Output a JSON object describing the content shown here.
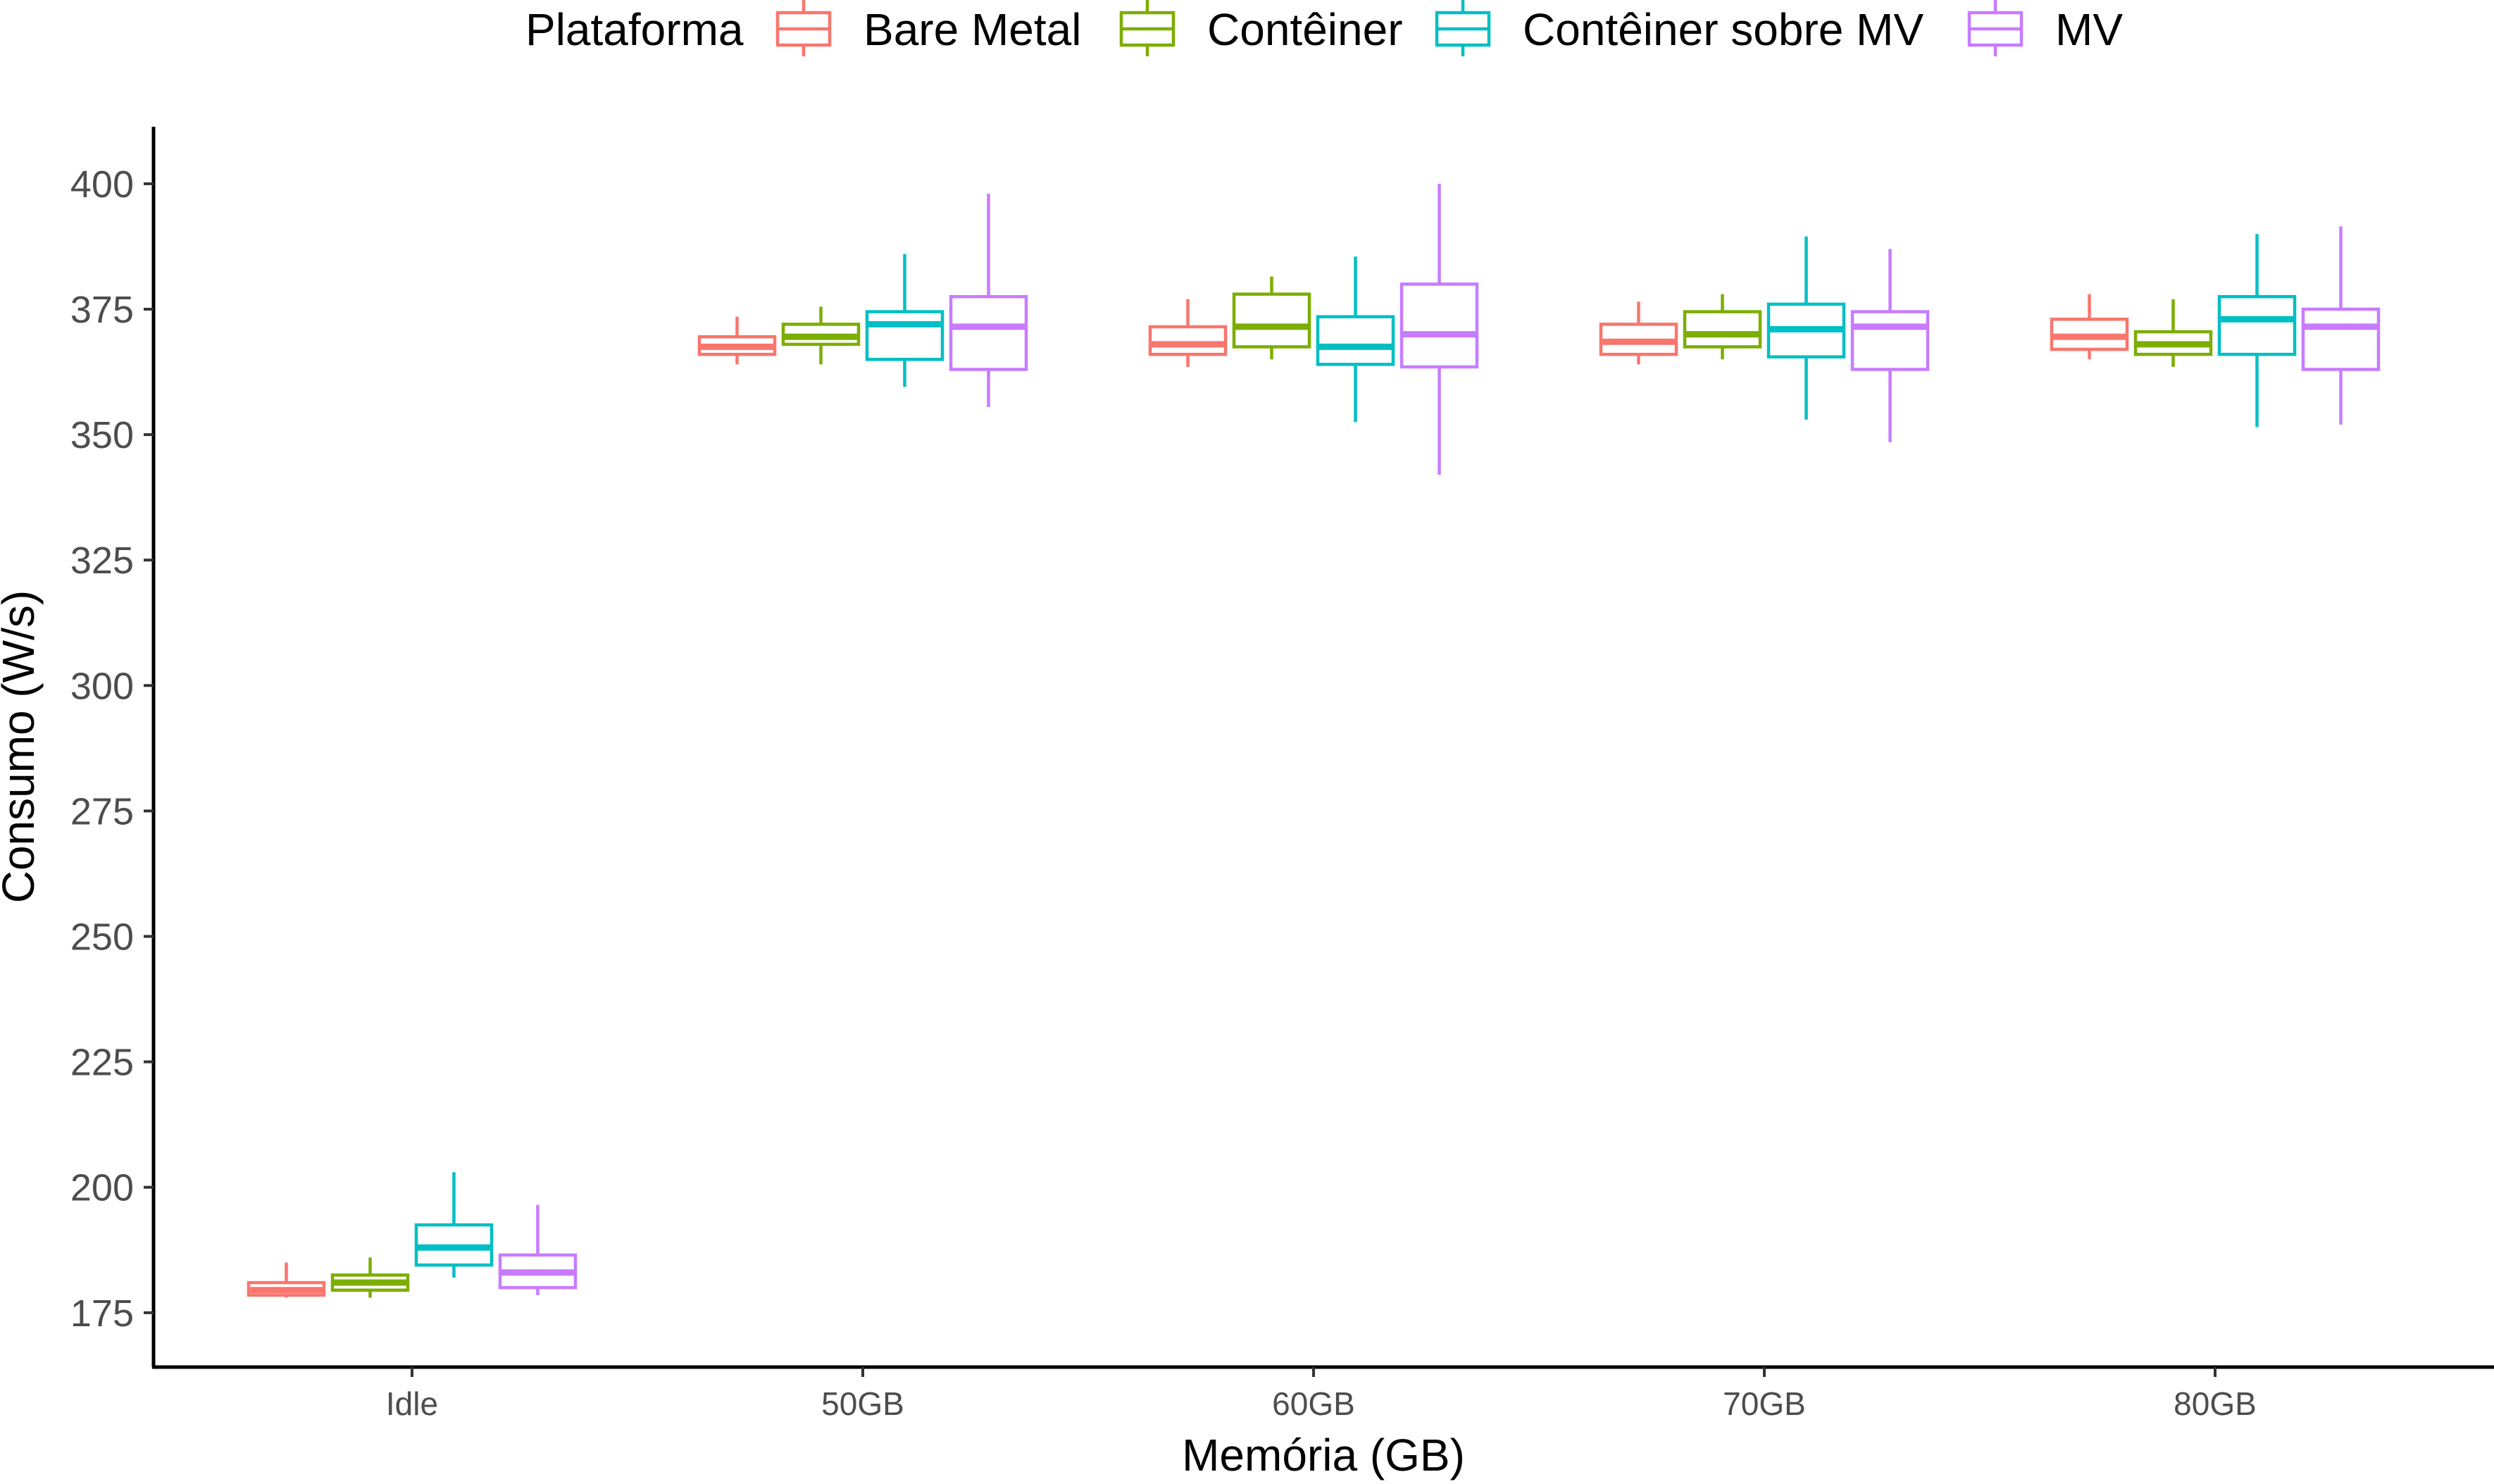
{
  "chart_data": {
    "type": "boxplot",
    "xlabel": "Memória (GB)",
    "ylabel": "Consumo (W/s)",
    "ylim": [
      160,
      410
    ],
    "yticks": [
      175,
      200,
      225,
      250,
      275,
      300,
      325,
      350,
      375,
      400
    ],
    "grid": false,
    "legend_title": "Plataforma",
    "legend_position": "top",
    "categories": [
      "Idle",
      "50GB",
      "60GB",
      "70GB",
      "80GB"
    ],
    "series": [
      {
        "name": "Bare Metal",
        "color": "#F8766D",
        "boxes": [
          {
            "min": 178,
            "q1": 178.5,
            "median": 179.5,
            "q3": 181,
            "max": 185
          },
          {
            "min": 364,
            "q1": 366,
            "median": 367.5,
            "q3": 369.5,
            "max": 373.5
          },
          {
            "min": 363.5,
            "q1": 366,
            "median": 368,
            "q3": 371.5,
            "max": 377
          },
          {
            "min": 364,
            "q1": 366,
            "median": 368.5,
            "q3": 372,
            "max": 376.5
          },
          {
            "min": 365,
            "q1": 367,
            "median": 369.5,
            "q3": 373,
            "max": 378
          }
        ]
      },
      {
        "name": "Contêiner",
        "color": "#7CAE00",
        "boxes": [
          {
            "min": 178,
            "q1": 179.5,
            "median": 181,
            "q3": 182.5,
            "max": 186
          },
          {
            "min": 364,
            "q1": 368,
            "median": 369.5,
            "q3": 372,
            "max": 375.5
          },
          {
            "min": 365,
            "q1": 367.5,
            "median": 371.5,
            "q3": 378,
            "max": 381.5
          },
          {
            "min": 365,
            "q1": 367.5,
            "median": 370,
            "q3": 374.5,
            "max": 378
          },
          {
            "min": 363.5,
            "q1": 366,
            "median": 368,
            "q3": 370.5,
            "max": 377
          }
        ]
      },
      {
        "name": "Contêiner sobre MV",
        "color": "#00BFC4",
        "boxes": [
          {
            "min": 182,
            "q1": 184.5,
            "median": 188,
            "q3": 192.5,
            "max": 203
          },
          {
            "min": 359.5,
            "q1": 365,
            "median": 372,
            "q3": 374.5,
            "max": 386
          },
          {
            "min": 352.5,
            "q1": 364,
            "median": 367.5,
            "q3": 373.5,
            "max": 385.5
          },
          {
            "min": 353,
            "q1": 365.5,
            "median": 371,
            "q3": 376,
            "max": 389.5
          },
          {
            "min": 351.5,
            "q1": 366,
            "median": 373,
            "q3": 377.5,
            "max": 390
          }
        ]
      },
      {
        "name": "MV",
        "color": "#C77CFF",
        "boxes": [
          {
            "min": 178.5,
            "q1": 180,
            "median": 183,
            "q3": 186.5,
            "max": 196.5
          },
          {
            "min": 355.5,
            "q1": 363,
            "median": 371.5,
            "q3": 377.5,
            "max": 398
          },
          {
            "min": 342,
            "q1": 363.5,
            "median": 370,
            "q3": 380,
            "max": 400
          },
          {
            "min": 348.5,
            "q1": 363,
            "median": 371.5,
            "q3": 374.5,
            "max": 387
          },
          {
            "min": 352,
            "q1": 363,
            "median": 371.5,
            "q3": 375,
            "max": 391.5
          }
        ]
      }
    ]
  }
}
